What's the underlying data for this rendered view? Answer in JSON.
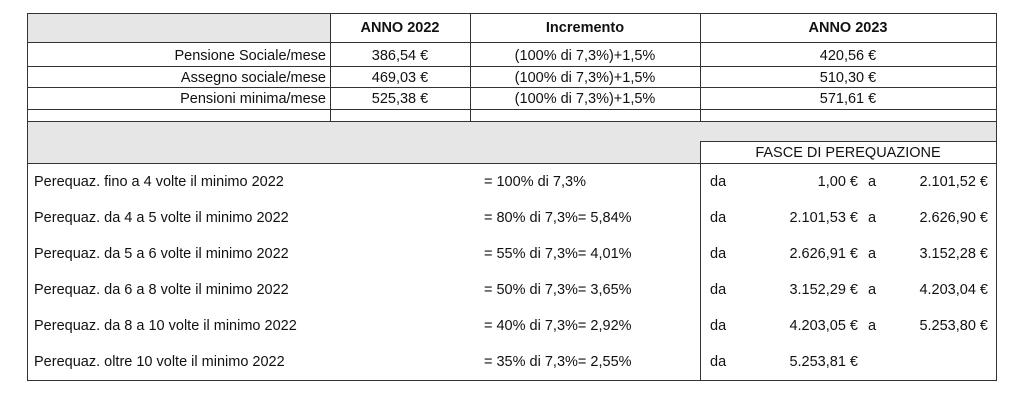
{
  "header": {
    "year_2022": "ANNO 2022",
    "increment": "Incremento",
    "year_2023": "ANNO 2023"
  },
  "pensions": [
    {
      "label": "Pensione Sociale/mese",
      "y2022": "386,54 €",
      "increment": "(100% di 7,3%)+1,5%",
      "y2023": "420,56 €"
    },
    {
      "label": "Assegno sociale/mese",
      "y2022": "469,03 €",
      "increment": "(100% di 7,3%)+1,5%",
      "y2023": "510,30 €"
    },
    {
      "label": "Pensioni minima/mese",
      "y2022": "525,38 €",
      "increment": "(100% di 7,3%)+1,5%",
      "y2023": "571,61 €"
    }
  ],
  "bands_title": "FASCE DI PEREQUAZIONE",
  "bands": [
    {
      "label": "Perequaz. fino a 4 volte il minimo 2022",
      "rate": "= 100% di 7,3%",
      "da": "da",
      "from": "1,00 €",
      "a": "a",
      "to": "2.101,52 €"
    },
    {
      "label": "Perequaz. da 4 a 5 volte il minimo 2022",
      "rate": "=  80% di 7,3%= 5,84%",
      "da": "da",
      "from": "2.101,53 €",
      "a": "a",
      "to": "2.626,90 €"
    },
    {
      "label": "Perequaz. da 5 a 6 volte il minimo 2022",
      "rate": "=  55% di 7,3%= 4,01%",
      "da": "da",
      "from": "2.626,91 €",
      "a": "a",
      "to": "3.152,28 €"
    },
    {
      "label": "Perequaz. da 6 a  8 volte il minimo 2022",
      "rate": "=  50% di 7,3%= 3,65%",
      "da": "da",
      "from": "3.152,29 €",
      "a": "a",
      "to": "4.203,04 €"
    },
    {
      "label": "Perequaz. da 8 a 10 volte il minimo 2022",
      "rate": "=  40% di 7,3%= 2,92%",
      "da": "da",
      "from": "4.203,05 €",
      "a": "a",
      "to": "5.253,80 €"
    },
    {
      "label": "Perequaz.  oltre 10 volte il minimo 2022",
      "rate": "=  35% di 7,3%= 2,55%",
      "da": "da",
      "from": "5.253,81 €",
      "a": "",
      "to": ""
    }
  ]
}
